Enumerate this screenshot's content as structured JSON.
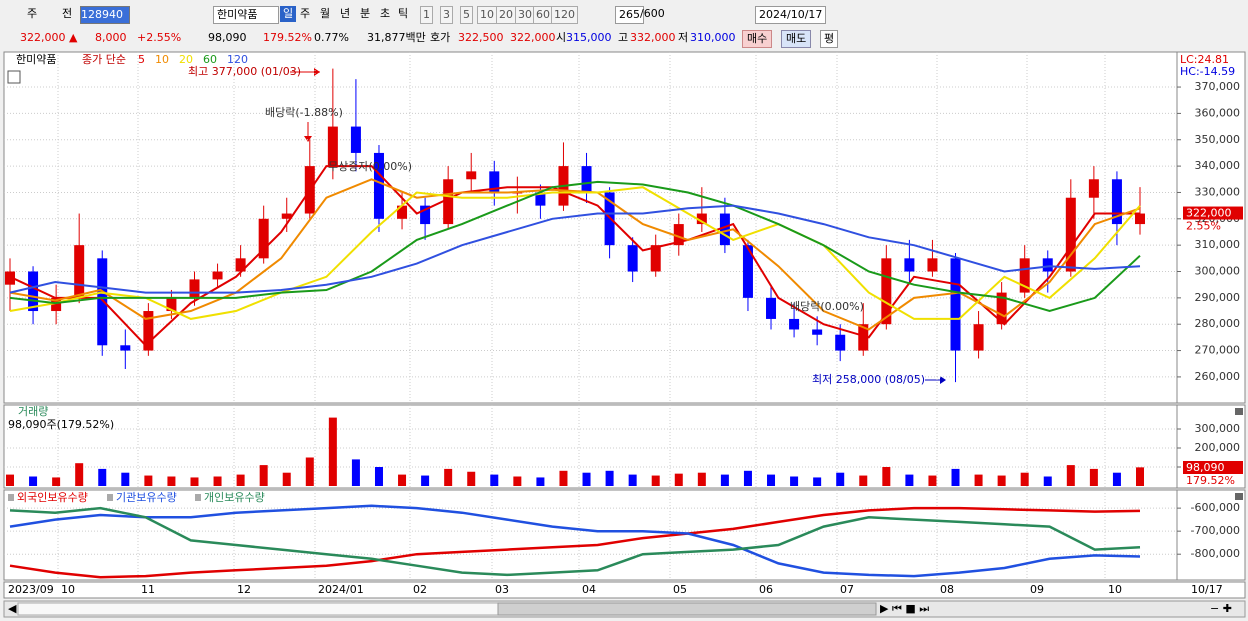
{
  "toolbar": [
    "주",
    "전",
    "128940",
    "한미약품",
    "일",
    "주",
    "월",
    "년",
    "분",
    "초",
    "틱",
    "1",
    "3",
    "5",
    "10",
    "20",
    "30",
    "60",
    "120",
    "265",
    "/600",
    "2024/10/17"
  ],
  "info": [
    "322,000 ▲",
    "8,000",
    "+2.55%",
    "98,090",
    "179.52%",
    "0.77%",
    "31,877백만",
    "호가",
    "322,500",
    "322,000",
    "시",
    "315,000",
    "고",
    "332,000",
    "저",
    "310,000",
    "매수",
    "매도",
    "평"
  ],
  "legend": {
    "stock": "한미약품",
    "method": "종가 단순"
  },
  "annotations": {
    "high": "최고 377,000 (01/03)",
    "div1": "배당락(-1.88%)",
    "bonus": "무상증자(0.00%)",
    "div2": "배당락(0.00%)",
    "low": "최저 258,000 (08/05)",
    "lc": "LC:24.81",
    "hc": "HC:-14.59",
    "price": "322,000",
    "change": "2.55%"
  },
  "volume_panel": {
    "title": "거래량",
    "summary": "98,090주(179.52%)",
    "last": "98,090",
    "ratio": "179.52%"
  },
  "x_axis": {
    "labels": [
      "2023/09",
      "10",
      "11",
      "12",
      "2024/01",
      "02",
      "03",
      "04",
      "05",
      "06",
      "07",
      "08",
      "09",
      "10",
      "10/17"
    ]
  },
  "chart_data": [
    {
      "type": "candlestick",
      "up_color": "#e00000",
      "down_color": "#0000ff",
      "open": [
        295000,
        300000,
        285000,
        290000,
        305000,
        272000,
        270000,
        285000,
        290000,
        297000,
        300000,
        305000,
        320000,
        322000,
        340000,
        355000,
        345000,
        320000,
        325000,
        318000,
        335000,
        338000,
        330000,
        330000,
        325000,
        340000,
        330000,
        310000,
        300000,
        310000,
        318000,
        322000,
        310000,
        290000,
        282000,
        278000,
        276000,
        270000,
        280000,
        305000,
        300000,
        305000,
        270000,
        280000,
        292000,
        305000,
        300000,
        328000,
        335000,
        318000
      ],
      "high": [
        305000,
        302000,
        295000,
        322000,
        308000,
        278000,
        288000,
        293000,
        300000,
        303000,
        310000,
        325000,
        328000,
        350000,
        377000,
        373000,
        348000,
        330000,
        328000,
        340000,
        345000,
        342000,
        336000,
        333000,
        349000,
        345000,
        332000,
        313000,
        314000,
        322000,
        332000,
        328000,
        312000,
        295000,
        288000,
        283000,
        280000,
        288000,
        310000,
        312000,
        312000,
        307000,
        285000,
        296000,
        310000,
        308000,
        335000,
        340000,
        338000,
        332000
      ],
      "low": [
        285000,
        280000,
        280000,
        288000,
        268000,
        263000,
        268000,
        282000,
        287000,
        294000,
        298000,
        303000,
        315000,
        320000,
        335000,
        338000,
        315000,
        316000,
        312000,
        316000,
        330000,
        325000,
        322000,
        320000,
        323000,
        326000,
        305000,
        296000,
        298000,
        306000,
        315000,
        307000,
        285000,
        278000,
        275000,
        272000,
        266000,
        268000,
        278000,
        296000,
        298000,
        258000,
        267000,
        278000,
        290000,
        292000,
        298000,
        320000,
        310000,
        314000
      ],
      "close": [
        300000,
        285000,
        290000,
        310000,
        272000,
        270000,
        285000,
        290000,
        297000,
        300000,
        305000,
        320000,
        322000,
        340000,
        355000,
        345000,
        320000,
        325000,
        318000,
        335000,
        338000,
        330000,
        330000,
        325000,
        340000,
        330000,
        310000,
        300000,
        310000,
        318000,
        322000,
        310000,
        290000,
        282000,
        278000,
        276000,
        270000,
        280000,
        305000,
        300000,
        305000,
        270000,
        280000,
        292000,
        305000,
        300000,
        328000,
        335000,
        318000,
        322000
      ],
      "series": [
        {
          "name": "5",
          "color": "#e00000",
          "values": [
            298000,
            290000,
            290000,
            272000,
            288000,
            298000,
            315000,
            340000,
            340000,
            322000,
            330000,
            332000,
            332000,
            325000,
            308000,
            312000,
            318000,
            290000,
            280000,
            275000,
            298000,
            295000,
            280000,
            298000,
            322000,
            322000
          ]
        },
        {
          "name": "10",
          "color": "#f08a00",
          "values": [
            292000,
            289000,
            293000,
            282000,
            285000,
            292000,
            305000,
            328000,
            335000,
            328000,
            330000,
            330000,
            331000,
            330000,
            318000,
            312000,
            316000,
            302000,
            285000,
            278000,
            290000,
            292000,
            283000,
            296000,
            318000,
            324000
          ]
        },
        {
          "name": "20",
          "color": "#f0e000",
          "values": [
            285000,
            288000,
            292000,
            290000,
            282000,
            285000,
            292000,
            298000,
            315000,
            330000,
            328000,
            328000,
            330000,
            330000,
            332000,
            322000,
            312000,
            318000,
            310000,
            292000,
            282000,
            282000,
            298000,
            290000,
            305000,
            325000
          ]
        },
        {
          "name": "60",
          "color": "#1a9a1a",
          "values": [
            290000,
            288000,
            290000,
            290000,
            290000,
            290000,
            292000,
            293000,
            300000,
            312000,
            318000,
            325000,
            332000,
            334000,
            333000,
            330000,
            325000,
            318000,
            310000,
            300000,
            295000,
            292000,
            290000,
            285000,
            290000,
            306000
          ]
        },
        {
          "name": "120",
          "color": "#3050e0",
          "values": [
            292000,
            296000,
            294000,
            292000,
            292000,
            292000,
            293000,
            295000,
            298000,
            303000,
            310000,
            315000,
            320000,
            322000,
            322000,
            324000,
            325000,
            322000,
            318000,
            313000,
            310000,
            305000,
            300000,
            302000,
            301000,
            302000
          ]
        }
      ],
      "ylim": [
        250100,
        383300
      ],
      "yticks": [
        {
          "value": 260000,
          "label": "260,000"
        },
        {
          "value": 270000,
          "label": "270,000"
        },
        {
          "value": 280000,
          "label": "280,000"
        },
        {
          "value": 290000,
          "label": "290,000"
        },
        {
          "value": 300000,
          "label": "300,000"
        },
        {
          "value": 310000,
          "label": "310,000"
        },
        {
          "value": 320000,
          "label": "320,000"
        },
        {
          "value": 330000,
          "label": "330,000"
        },
        {
          "value": 340000,
          "label": "340,000"
        },
        {
          "value": 350000,
          "label": "350,000"
        },
        {
          "value": 360000,
          "label": "360,000"
        },
        {
          "value": 370000,
          "label": "370,000"
        }
      ],
      "grid": true
    },
    {
      "type": "bar",
      "values": [
        60000,
        50000,
        45000,
        120000,
        90000,
        70000,
        55000,
        50000,
        45000,
        50000,
        60000,
        110000,
        70000,
        150000,
        360000,
        140000,
        100000,
        60000,
        55000,
        90000,
        75000,
        60000,
        50000,
        45000,
        80000,
        70000,
        80000,
        60000,
        55000,
        65000,
        70000,
        60000,
        80000,
        60000,
        50000,
        45000,
        70000,
        55000,
        100000,
        60000,
        55000,
        90000,
        60000,
        55000,
        70000,
        50000,
        110000,
        90000,
        70000,
        98090
      ],
      "ylim": [
        0,
        400000
      ],
      "yticks": [
        {
          "value": 100000,
          "label": "100,000"
        },
        {
          "value": 200000,
          "label": "200,000"
        },
        {
          "value": 300000,
          "label": "300,000"
        }
      ],
      "grid": true
    },
    {
      "type": "line",
      "series": [
        {
          "name": "외국인보유수량",
          "color": "#e00000",
          "values": [
            -850000,
            -880000,
            -900000,
            -895000,
            -880000,
            -870000,
            -860000,
            -850000,
            -830000,
            -800000,
            -790000,
            -780000,
            -770000,
            -760000,
            -730000,
            -710000,
            -690000,
            -660000,
            -630000,
            -610000,
            -600000,
            -600000,
            -605000,
            -610000,
            -615000,
            -612000
          ]
        },
        {
          "name": "기관보유수량",
          "color": "#2050e0",
          "values": [
            -680000,
            -650000,
            -630000,
            -640000,
            -640000,
            -620000,
            -610000,
            -600000,
            -590000,
            -600000,
            -620000,
            -650000,
            -680000,
            -700000,
            -700000,
            -710000,
            -760000,
            -840000,
            -880000,
            -890000,
            -895000,
            -880000,
            -860000,
            -820000,
            -805000,
            -810000
          ]
        },
        {
          "name": "개인보유수량",
          "color": "#2a8a5a",
          "values": [
            -610000,
            -620000,
            -600000,
            -640000,
            -740000,
            -760000,
            -780000,
            -800000,
            -820000,
            -850000,
            -880000,
            -890000,
            -880000,
            -870000,
            -800000,
            -790000,
            -780000,
            -760000,
            -680000,
            -640000,
            -650000,
            -660000,
            -670000,
            -680000,
            -780000,
            -770000
          ]
        }
      ],
      "ylim": [
        -912000,
        -530000
      ],
      "yticks": [
        {
          "value": -600000,
          "label": "-600,000"
        },
        {
          "value": -700000,
          "label": "-700,000"
        },
        {
          "value": -800000,
          "label": "-800,000"
        }
      ],
      "grid": true
    }
  ]
}
